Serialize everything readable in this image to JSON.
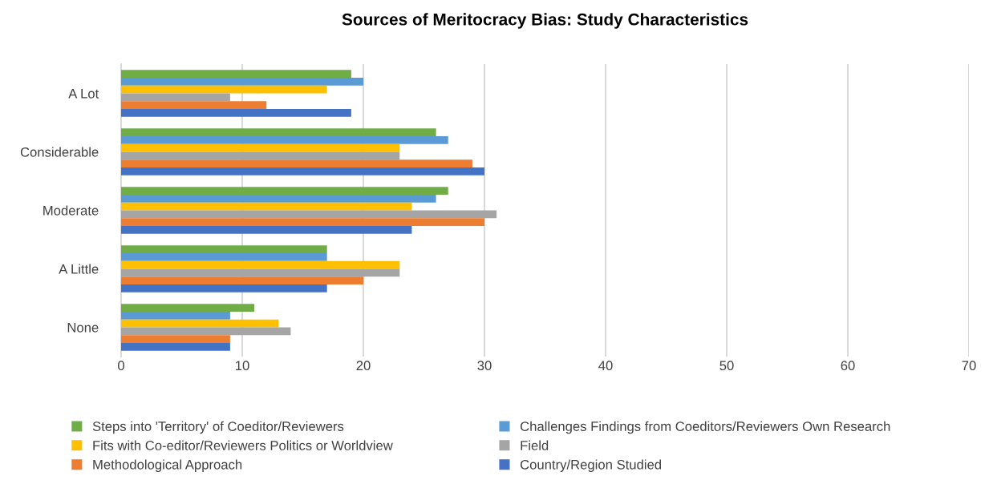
{
  "chart_data": {
    "type": "bar",
    "orientation": "horizontal",
    "title": "Sources of Meritocracy Bias: Study Characteristics",
    "categories": [
      "A Lot",
      "Considerable",
      "Moderate",
      "A Little",
      "None"
    ],
    "series": [
      {
        "name": "Steps into 'Territory' of Coeditor/Reviewers",
        "color": "#70ad47",
        "values": [
          19,
          26,
          27,
          17,
          11
        ]
      },
      {
        "name": "Challenges Findings from Coeditors/Reviewers Own Research",
        "color": "#5b9bd5",
        "values": [
          20,
          27,
          26,
          17,
          9
        ]
      },
      {
        "name": "Fits with Co-editor/Reviewers Politics or Worldview",
        "color": "#ffc000",
        "values": [
          17,
          23,
          24,
          23,
          13
        ]
      },
      {
        "name": "Field",
        "color": "#a5a5a5",
        "values": [
          9,
          23,
          31,
          23,
          14
        ]
      },
      {
        "name": "Methodological Approach",
        "color": "#ed7d31",
        "values": [
          12,
          29,
          30,
          20,
          9
        ]
      },
      {
        "name": "Country/Region Studied",
        "color": "#4472c4",
        "values": [
          19,
          30,
          24,
          17,
          9
        ]
      }
    ],
    "xlim": [
      0,
      70
    ],
    "xticks": [
      0,
      10,
      20,
      30,
      40,
      50,
      60,
      70
    ],
    "grid": "x",
    "legend": "bottom"
  }
}
